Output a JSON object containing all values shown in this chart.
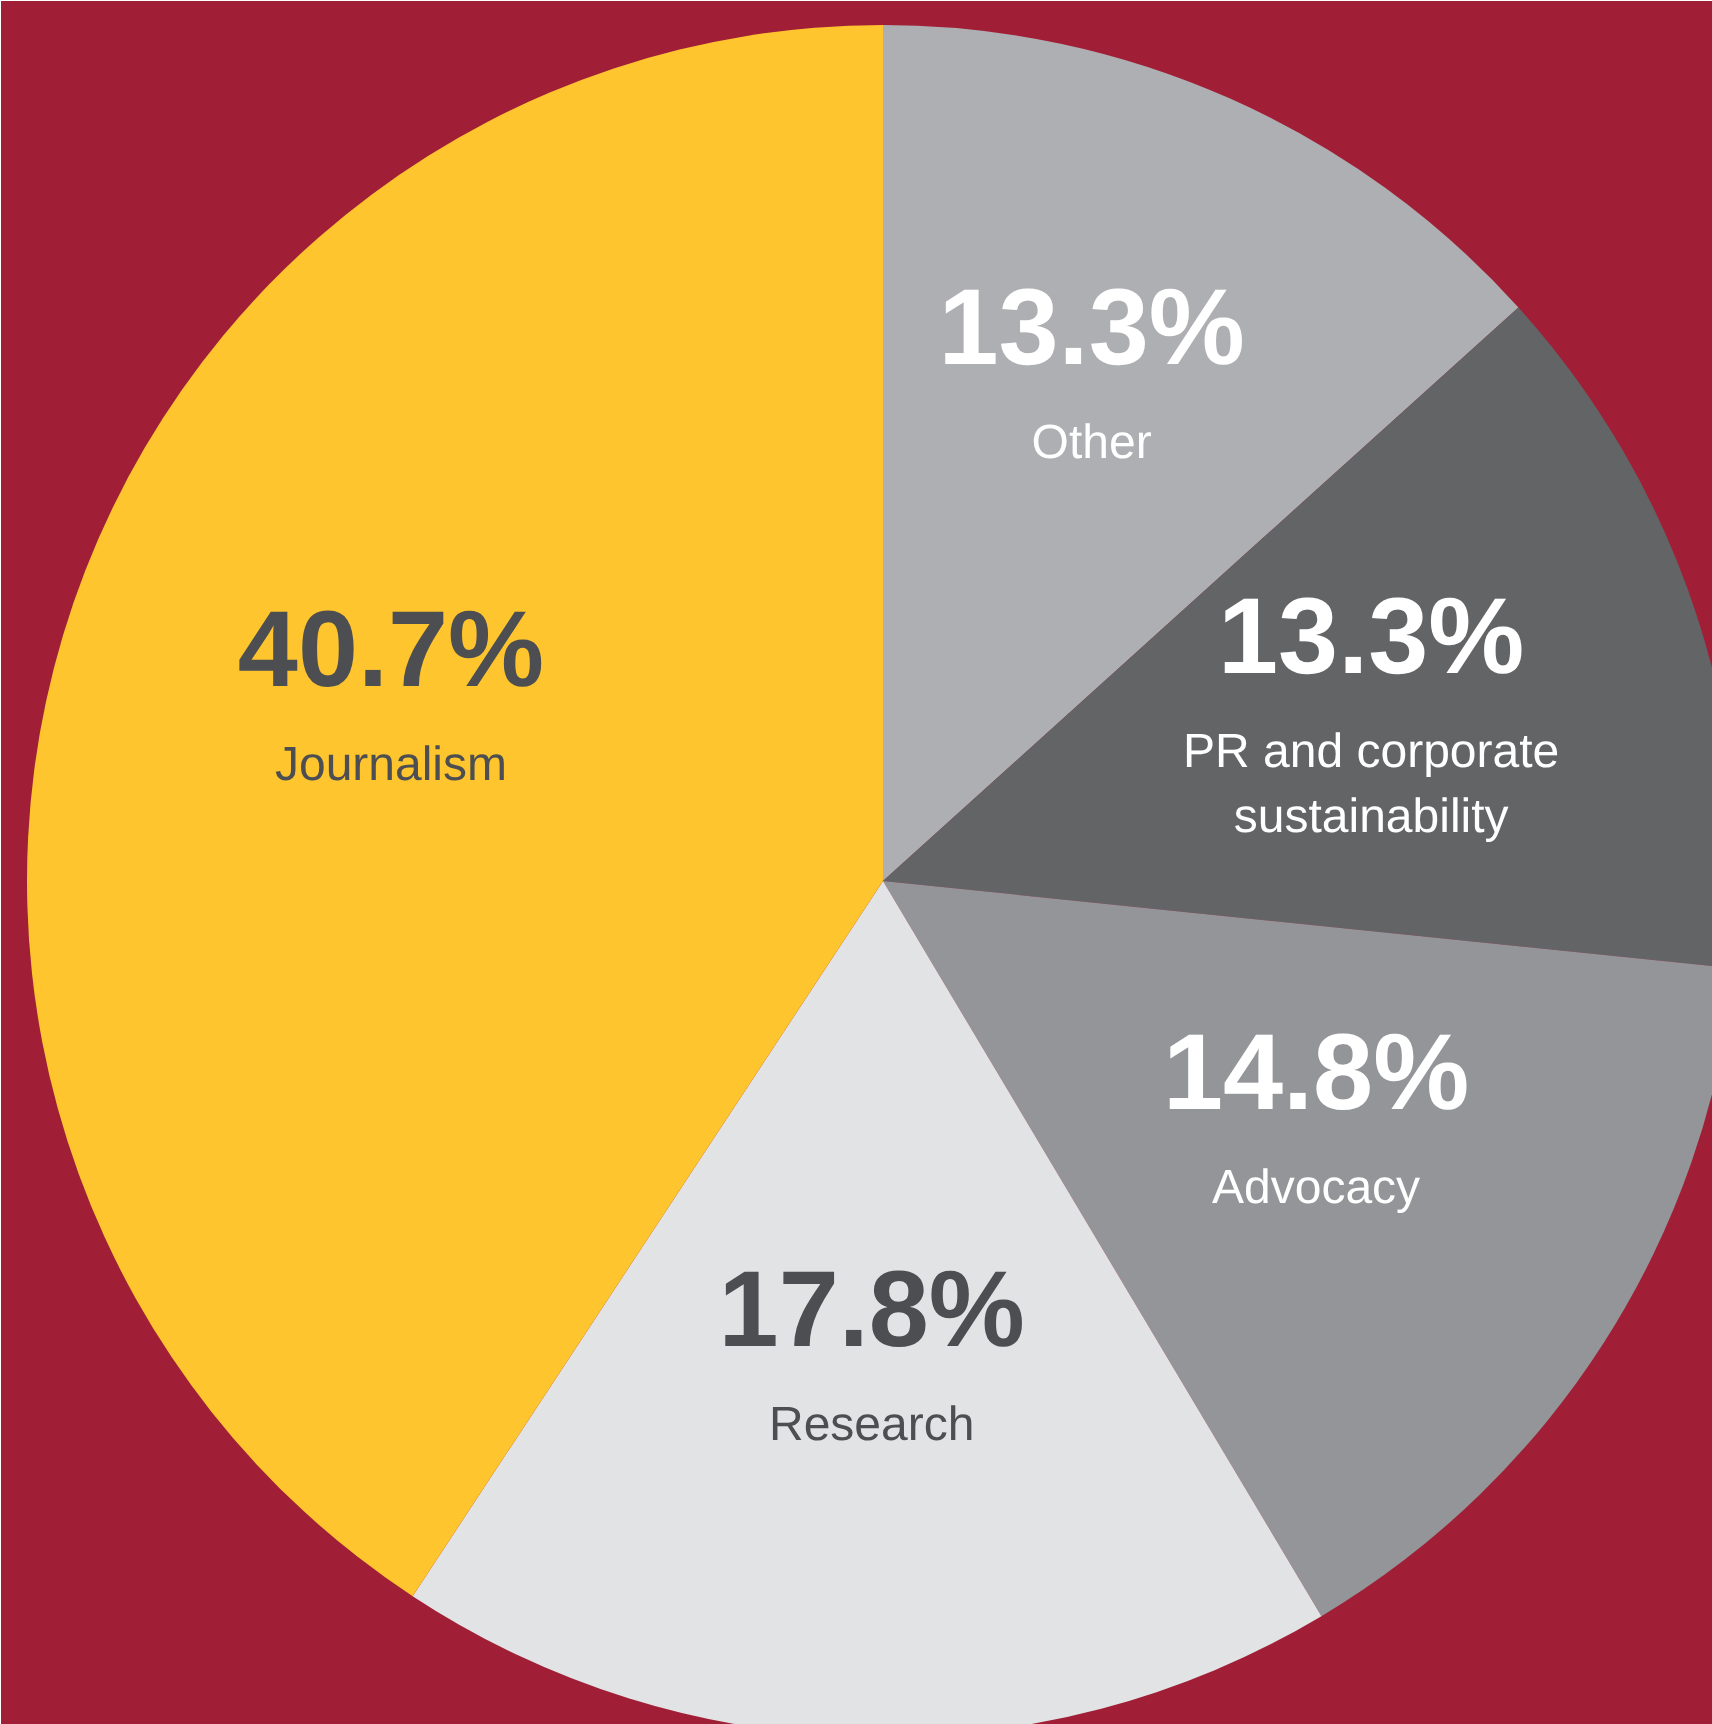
{
  "chart_data": {
    "type": "pie",
    "categories": [
      "Other",
      "PR and corporate sustainability",
      "Advocacy",
      "Research",
      "Journalism"
    ],
    "values": [
      13.3,
      13.3,
      14.8,
      17.8,
      40.7
    ],
    "colors": [
      "#aeafb2",
      "#636466",
      "#939598",
      "#e2e3e4",
      "#fec52e"
    ],
    "value_labels": [
      "13.3%",
      "13.3%",
      "14.8%",
      "17.8%",
      "40.7%"
    ]
  }
}
